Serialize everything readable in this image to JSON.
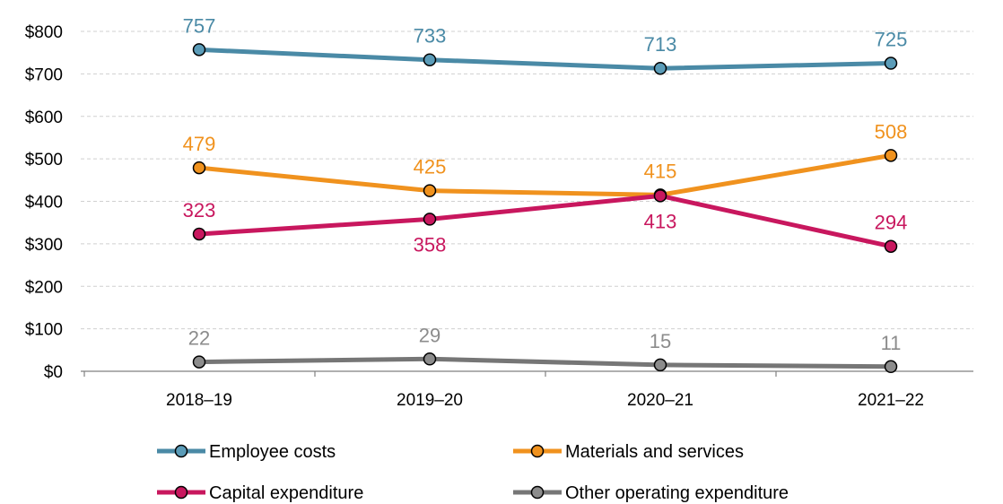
{
  "chart_data": {
    "type": "line",
    "categories": [
      "2018–19",
      "2019–20",
      "2020–21",
      "2021–22"
    ],
    "y_tick_labels": [
      "$0",
      "$100",
      "$200",
      "$300",
      "$400",
      "$500",
      "$600",
      "$700",
      "$800"
    ],
    "y_ticks": [
      0,
      100,
      200,
      300,
      400,
      500,
      600,
      700,
      800
    ],
    "ylim": [
      0,
      800
    ],
    "grid": true,
    "legend_position": "bottom",
    "series": [
      {
        "name": "Employee costs",
        "color": "#4a8aa6",
        "marker_fill": "#5b9cb8",
        "values": [
          757,
          733,
          713,
          725
        ],
        "labels": [
          "757",
          "733",
          "713",
          "725"
        ],
        "label_position": [
          "above",
          "above",
          "above",
          "above"
        ]
      },
      {
        "name": "Materials and services",
        "color": "#f0921e",
        "marker_fill": "#f0921e",
        "values": [
          479,
          425,
          415,
          508
        ],
        "labels": [
          "479",
          "425",
          "415",
          "508"
        ],
        "label_position": [
          "above",
          "above",
          "above",
          "above"
        ]
      },
      {
        "name": "Capital expenditure",
        "color": "#c8175e",
        "marker_fill": "#c8175e",
        "values": [
          323,
          358,
          413,
          294
        ],
        "labels": [
          "323",
          "358",
          "413",
          "294"
        ],
        "label_position": [
          "above",
          "below",
          "below",
          "above"
        ]
      },
      {
        "name": "Other operating expenditure",
        "color": "#767676",
        "marker_fill": "#8c8c8c",
        "values": [
          22,
          29,
          15,
          11
        ],
        "labels": [
          "22",
          "29",
          "15",
          "11"
        ],
        "label_position": [
          "above",
          "above",
          "above",
          "above"
        ],
        "label_color": "#8c8c8c"
      }
    ]
  }
}
